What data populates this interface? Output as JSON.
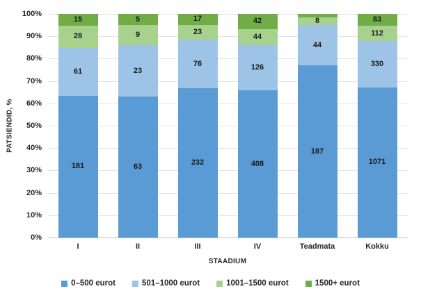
{
  "chart_data": {
    "type": "bar",
    "variant": "stacked-100",
    "title": "",
    "xlabel": "STAADIUM",
    "ylabel": "PATSIENDID, %",
    "categories": [
      "I",
      "II",
      "III",
      "IV",
      "Teadmata",
      "Kokku"
    ],
    "series": [
      {
        "name": "0–500 eurot",
        "color": "#5B9BD5",
        "values": [
          181,
          63,
          232,
          408,
          187,
          1071
        ],
        "labels": [
          "181",
          "63",
          "232",
          "408",
          "187",
          "1071"
        ]
      },
      {
        "name": "501–1000 eurot",
        "color": "#9DC3E6",
        "values": [
          61,
          23,
          76,
          126,
          44,
          330
        ],
        "labels": [
          "61",
          "23",
          "76",
          "126",
          "44",
          "330"
        ]
      },
      {
        "name": "1001–1500 eurot",
        "color": "#A9D18E",
        "values": [
          28,
          9,
          23,
          44,
          8,
          112
        ],
        "labels": [
          "28",
          "9",
          "23",
          "44",
          "8",
          "112"
        ]
      },
      {
        "name": "1500+ eurot",
        "color": "#70AD47",
        "values": [
          15,
          5,
          17,
          42,
          4,
          83
        ],
        "labels": [
          "15",
          "5",
          "17",
          "42",
          "",
          "83"
        ]
      }
    ],
    "y_ticks": [
      "0%",
      "10%",
      "20%",
      "30%",
      "40%",
      "50%",
      "60%",
      "70%",
      "80%",
      "90%",
      "100%"
    ],
    "ylim": [
      0,
      100
    ],
    "grid": "horizontal",
    "grid_color": "#e3e3e3",
    "axis_line_color": "#bfbfbf",
    "legend_position": "bottom"
  }
}
